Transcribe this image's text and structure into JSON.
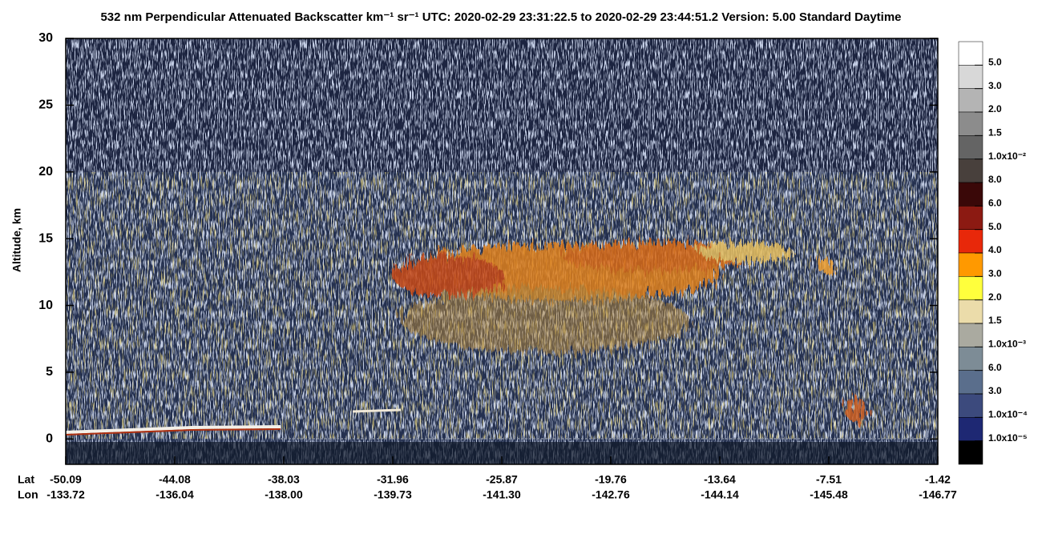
{
  "chart_data": {
    "type": "heatmap",
    "title": "532 nm Perpendicular Attenuated Backscatter km⁻¹ sr⁻¹  UTC: 2020-02-29 23:31:22.5 to 2020-02-29 23:44:51.2  Version: 5.00 Standard Daytime",
    "ylabel": "Altitude, km",
    "ylim": [
      -1.9,
      30
    ],
    "yticks": [
      0,
      5,
      10,
      15,
      20,
      25,
      30
    ],
    "x_rows": [
      {
        "name": "Lat",
        "labels": [
          "-50.09",
          "-44.08",
          "-38.03",
          "-31.96",
          "-25.87",
          "-19.76",
          "-13.64",
          "-7.51",
          "-1.42"
        ]
      },
      {
        "name": "Lon",
        "labels": [
          "-133.72",
          "-136.04",
          "-138.00",
          "-139.73",
          "-141.30",
          "-142.76",
          "-144.14",
          "-145.48",
          "-146.77"
        ]
      }
    ],
    "colorbar": {
      "colors": [
        "#ffffff",
        "#d8d8d8",
        "#b4b4b4",
        "#8c8c8c",
        "#646464",
        "#48403c",
        "#3a0808",
        "#8c1a12",
        "#e8280a",
        "#ff9900",
        "#ffff3c",
        "#ebdcaa",
        "#aaaaa0",
        "#7d8c96",
        "#5a6e8c",
        "#3c4a7d",
        "#1e2873",
        "#000000"
      ],
      "labels": [
        "5.0",
        "3.0",
        "2.0",
        "1.5",
        "1.0x10⁻²",
        "8.0",
        "6.0",
        "5.0",
        "4.0",
        "3.0",
        "2.0",
        "1.5",
        "1.0x10⁻³",
        "6.0",
        "3.0",
        "1.0x10⁻⁴",
        "1.0x10⁻⁵"
      ]
    }
  }
}
